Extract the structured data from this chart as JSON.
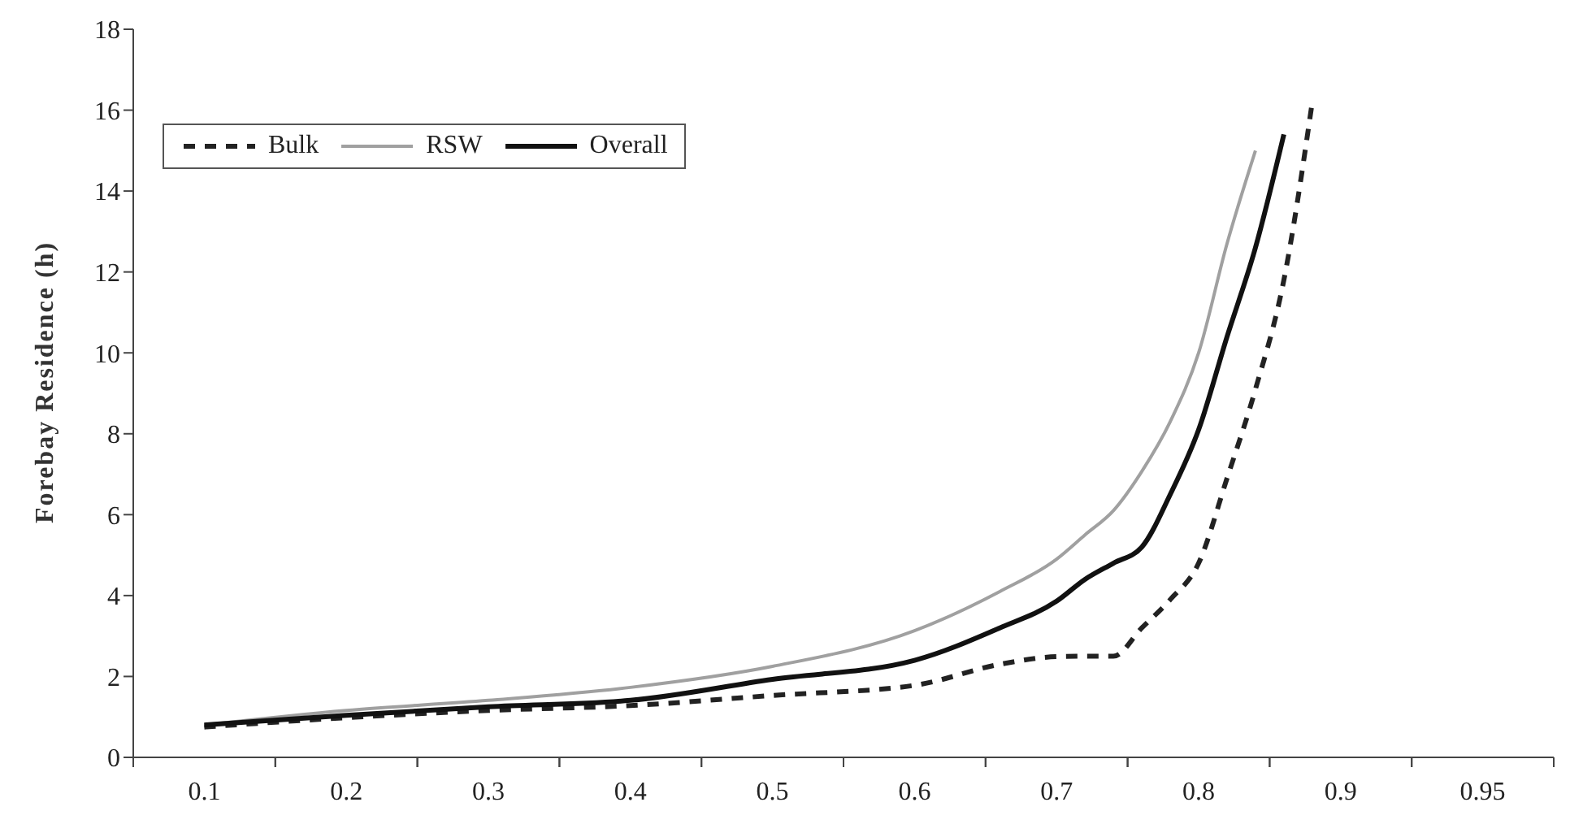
{
  "chart_data": {
    "type": "line",
    "ylabel": "Forebay Residence (h)",
    "categories": [
      "0.1",
      null,
      null,
      null,
      null,
      "0.2",
      null,
      null,
      null,
      null,
      "0.3",
      null,
      null,
      null,
      null,
      "0.4",
      null,
      null,
      null,
      null,
      "0.5",
      null,
      null,
      null,
      null,
      "0.6",
      null,
      null,
      null,
      null,
      "0.7",
      null,
      null,
      null,
      null,
      "0.8",
      null,
      null,
      null,
      null,
      "0.9",
      null,
      null,
      null,
      null,
      "0.95"
    ],
    "series": [
      {
        "name": "Bulk",
        "color": "#222222",
        "line_style": "dashed",
        "values": [
          0.75,
          null,
          null,
          null,
          null,
          0.98,
          null,
          null,
          null,
          null,
          1.16,
          null,
          null,
          null,
          null,
          1.28,
          null,
          null,
          null,
          null,
          1.53,
          null,
          null,
          null,
          null,
          1.78,
          null,
          null,
          2.3,
          null,
          2.49,
          2.5,
          2.5,
          3.2,
          3.9,
          4.8,
          6.9,
          9.1,
          11.8,
          16.2,
          null,
          null,
          null,
          null,
          null,
          null
        ]
      },
      {
        "name": "RSW",
        "color": "#a0a0a0",
        "line_style": "solid",
        "values": [
          0.8,
          null,
          null,
          null,
          null,
          1.16,
          null,
          null,
          null,
          null,
          1.41,
          null,
          null,
          null,
          null,
          1.73,
          null,
          null,
          null,
          null,
          2.25,
          null,
          null,
          null,
          null,
          3.13,
          null,
          null,
          4.1,
          null,
          4.9,
          5.5,
          6.1,
          7.07,
          8.3,
          10.0,
          12.7,
          15.0,
          null,
          null,
          null,
          null,
          null,
          null,
          null,
          null
        ]
      },
      {
        "name": "Overall",
        "color": "#111111",
        "line_style": "solid",
        "values": [
          0.8,
          null,
          null,
          null,
          null,
          1.04,
          null,
          null,
          null,
          null,
          1.25,
          null,
          null,
          null,
          null,
          1.41,
          null,
          null,
          null,
          null,
          1.93,
          null,
          null,
          null,
          null,
          2.4,
          null,
          null,
          3.2,
          null,
          3.86,
          4.4,
          4.8,
          5.2,
          6.5,
          8.1,
          10.4,
          12.6,
          15.4,
          null,
          null,
          null,
          null,
          null,
          null,
          null
        ]
      }
    ],
    "ylim": [
      0,
      18
    ],
    "yticks": [
      0,
      2,
      4,
      6,
      8,
      10,
      12,
      14,
      16,
      18
    ],
    "legend": "top left",
    "marker": "none"
  }
}
